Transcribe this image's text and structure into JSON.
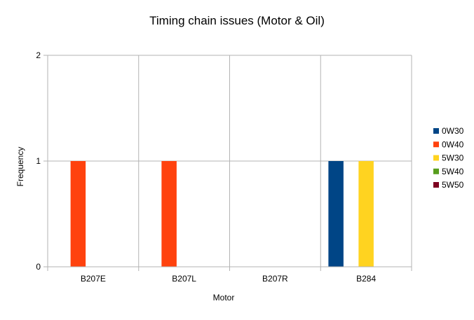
{
  "chart_data": {
    "type": "bar",
    "title": "Timing chain issues (Motor & Oil)",
    "xlabel": "Motor",
    "ylabel": "Frequency",
    "categories": [
      "B207E",
      "B207L",
      "B207R",
      "B284"
    ],
    "ylim": [
      0,
      2
    ],
    "yticks": [
      "0",
      "1",
      "2"
    ],
    "grid": true,
    "legend_position": "right",
    "series": [
      {
        "name": "0W30",
        "color": "#004586",
        "values": [
          0,
          0,
          0,
          1
        ]
      },
      {
        "name": "0W40",
        "color": "#ff420e",
        "values": [
          1,
          1,
          0,
          0
        ]
      },
      {
        "name": "5W30",
        "color": "#ffd320",
        "values": [
          0,
          0,
          0,
          1
        ]
      },
      {
        "name": "5W40",
        "color": "#579d1c",
        "values": [
          0,
          0,
          0,
          0
        ]
      },
      {
        "name": "5W50",
        "color": "#7e0021",
        "values": [
          0,
          0,
          0,
          0
        ]
      }
    ]
  }
}
